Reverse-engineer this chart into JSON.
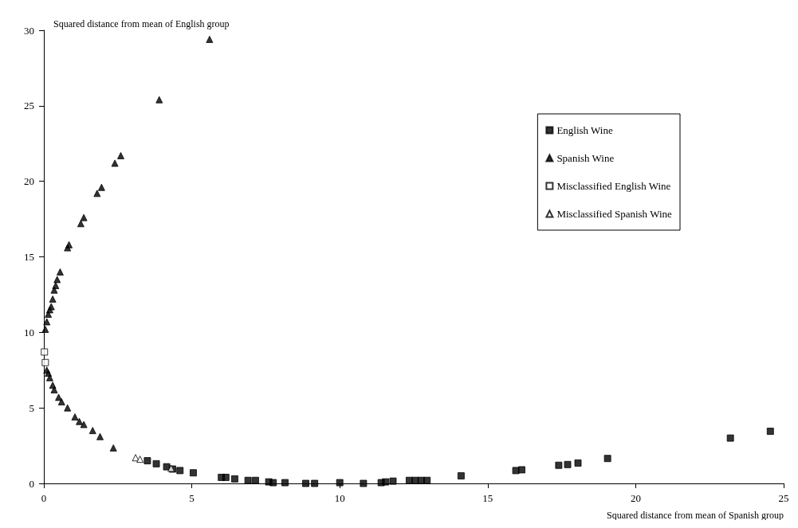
{
  "chart_data": {
    "type": "scatter",
    "xlabel": "Squared distance from mean of Spanish group",
    "ylabel": "Squared distance from mean of English group",
    "xlim": [
      0,
      25
    ],
    "xticks": [
      0,
      5,
      10,
      15,
      20,
      25
    ],
    "ylim": [
      0,
      30
    ],
    "yticks": [
      0,
      5,
      10,
      15,
      20,
      25,
      30
    ],
    "grid": false,
    "legend": "top right",
    "series": [
      {
        "name": "English Wine",
        "color": "#000000",
        "marker": "square",
        "x": [
          3.5,
          3.8,
          4.15,
          4.35,
          4.6,
          5.05,
          6.0,
          6.15,
          6.45,
          6.9,
          7.15,
          7.6,
          7.75,
          8.15,
          8.85,
          9.15,
          10.0,
          10.8,
          11.4,
          11.55,
          11.8,
          12.35,
          12.55,
          12.75,
          12.95,
          14.1,
          15.95,
          16.15,
          17.4,
          17.7,
          18.05,
          19.05,
          23.2,
          24.55
        ],
        "values": [
          1.5,
          1.3,
          1.1,
          0.95,
          0.85,
          0.7,
          0.4,
          0.4,
          0.3,
          0.2,
          0.2,
          0.1,
          0.05,
          0.05,
          0,
          0,
          0.05,
          0,
          0.05,
          0.1,
          0.15,
          0.2,
          0.2,
          0.2,
          0.2,
          0.5,
          0.85,
          0.9,
          1.2,
          1.25,
          1.35,
          1.65,
          3.0,
          3.45
        ]
      },
      {
        "name": "Spanish Wine",
        "color": "#000000",
        "marker": "triangle",
        "x": [
          0.05,
          0.1,
          0.15,
          0.2,
          0.25,
          0.3,
          0.35,
          0.4,
          0.45,
          0.55,
          0.8,
          0.85,
          1.25,
          1.35,
          1.8,
          1.95,
          2.4,
          2.6,
          3.9,
          5.6,
          0.1,
          0.15,
          0.2,
          0.3,
          0.35,
          0.5,
          0.6,
          0.8,
          1.05,
          1.2,
          1.35,
          1.65,
          1.9,
          2.35
        ],
        "values": [
          10.2,
          10.7,
          11.2,
          11.5,
          11.7,
          12.2,
          12.8,
          13.1,
          13.5,
          14.0,
          15.6,
          15.8,
          17.2,
          17.6,
          19.2,
          19.6,
          21.2,
          21.7,
          25.4,
          29.4,
          7.5,
          7.3,
          7.0,
          6.5,
          6.2,
          5.7,
          5.4,
          5.0,
          4.4,
          4.1,
          3.9,
          3.5,
          3.1,
          2.35
        ]
      },
      {
        "name": "Misclassified English Wine",
        "color": "#ffffff",
        "marker": "square",
        "x": [
          0.02,
          0.05
        ],
        "values": [
          8.7,
          8.0
        ]
      },
      {
        "name": "Misclassified Spanish Wine",
        "color": "#ffffff",
        "marker": "triangle",
        "x": [
          3.1,
          3.25,
          4.3
        ],
        "values": [
          1.7,
          1.6,
          1.0
        ]
      }
    ]
  }
}
